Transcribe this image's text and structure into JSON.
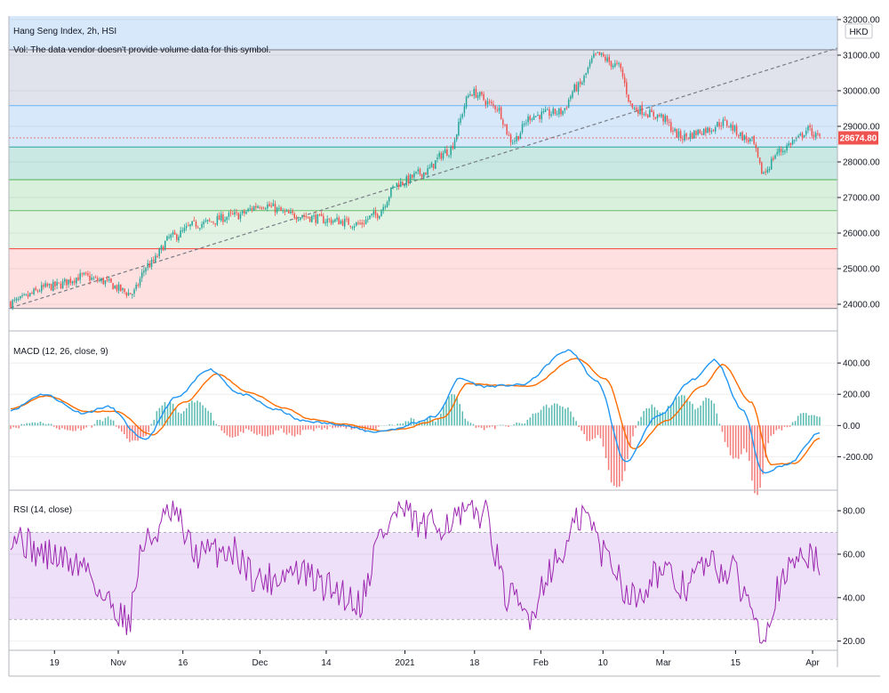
{
  "header": {
    "title": "Hang Seng Index, 2h, HSI",
    "volume_note": "Vol: The data vendor doesn't provide volume data for this symbol.",
    "currency": "HKD"
  },
  "price_badge": "28674.80",
  "macd_label": "MACD (12, 26, close, 9)",
  "rsi_label": "RSI (14, close)",
  "colors": {
    "up": "#26a69a",
    "down": "#ef5350",
    "macd": "#2196f3",
    "signal": "#ff6d00",
    "rsi": "#9c27b0",
    "rsi_band": "#e9d6f7",
    "trendline": "#787b86"
  },
  "chart_data": [
    {
      "type": "candlestick",
      "title": "Hang Seng Index, 2h, HSI",
      "ylim": [
        23800,
        32100
      ],
      "y_ticks": [
        "32000.00",
        "31000.00",
        "30000.00",
        "29000.00",
        "28000.00",
        "27000.00",
        "26000.00",
        "25000.00",
        "24000.00"
      ],
      "x_ticks": [
        "19",
        "Nov",
        "16",
        "Dec",
        "14",
        "2021",
        "18",
        "Feb",
        "10",
        "Mar",
        "15",
        "Apr"
      ],
      "last_price": 28674.8,
      "fib_levels": [
        31150,
        29580,
        28420,
        27500,
        26630,
        25560,
        23880
      ],
      "fib_band_colors": [
        "#e0e3eb",
        "#d7e8fb",
        "#c9e8e3",
        "#d9f0dc",
        "#e3f3e3",
        "#fde0df"
      ],
      "fib_line_colors": [
        "#787b86",
        "#64b5f6",
        "#26a69a",
        "#4caf50",
        "#66bb6a",
        "#f44336",
        "#787b86"
      ],
      "trendline": {
        "from": [
          0,
          23900
        ],
        "to": [
          1,
          31200
        ]
      },
      "anchors": [
        [
          0,
          24050
        ],
        [
          0.05,
          24500
        ],
        [
          0.09,
          24780
        ],
        [
          0.11,
          24660
        ],
        [
          0.15,
          24300
        ],
        [
          0.17,
          25100
        ],
        [
          0.2,
          25900
        ],
        [
          0.23,
          26250
        ],
        [
          0.28,
          26500
        ],
        [
          0.31,
          26800
        ],
        [
          0.35,
          26500
        ],
        [
          0.4,
          26350
        ],
        [
          0.43,
          26250
        ],
        [
          0.45,
          26500
        ],
        [
          0.48,
          27400
        ],
        [
          0.51,
          27700
        ],
        [
          0.54,
          28300
        ],
        [
          0.57,
          29950
        ],
        [
          0.6,
          29550
        ],
        [
          0.62,
          28600
        ],
        [
          0.645,
          29300
        ],
        [
          0.68,
          29400
        ],
        [
          0.7,
          30100
        ],
        [
          0.725,
          31000
        ],
        [
          0.75,
          30700
        ],
        [
          0.77,
          29500
        ],
        [
          0.8,
          29300
        ],
        [
          0.83,
          28700
        ],
        [
          0.86,
          28900
        ],
        [
          0.88,
          29100
        ],
        [
          0.915,
          28600
        ],
        [
          0.93,
          27700
        ],
        [
          0.95,
          28300
        ],
        [
          0.97,
          28600
        ],
        [
          0.985,
          28900
        ],
        [
          1,
          28675
        ]
      ]
    },
    {
      "type": "line",
      "title": "MACD (12, 26, close, 9)",
      "series": [
        {
          "name": "MACD",
          "anchors": [
            [
              0,
              100
            ],
            [
              0.04,
              200
            ],
            [
              0.09,
              80
            ],
            [
              0.12,
              120
            ],
            [
              0.165,
              -90
            ],
            [
              0.205,
              180
            ],
            [
              0.245,
              360
            ],
            [
              0.285,
              200
            ],
            [
              0.33,
              100
            ],
            [
              0.36,
              30
            ],
            [
              0.4,
              10
            ],
            [
              0.45,
              -40
            ],
            [
              0.48,
              -20
            ],
            [
              0.5,
              20
            ],
            [
              0.525,
              60
            ],
            [
              0.555,
              300
            ],
            [
              0.585,
              250
            ],
            [
              0.63,
              260
            ],
            [
              0.69,
              480
            ],
            [
              0.725,
              280
            ],
            [
              0.76,
              -230
            ],
            [
              0.8,
              60
            ],
            [
              0.845,
              300
            ],
            [
              0.87,
              420
            ],
            [
              0.905,
              100
            ],
            [
              0.93,
              -300
            ],
            [
              0.96,
              -250
            ],
            [
              1,
              -50
            ]
          ]
        },
        {
          "name": "Signal",
          "anchors": [
            [
              0,
              110
            ],
            [
              0.045,
              190
            ],
            [
              0.095,
              90
            ],
            [
              0.13,
              90
            ],
            [
              0.175,
              -60
            ],
            [
              0.215,
              150
            ],
            [
              0.255,
              330
            ],
            [
              0.295,
              210
            ],
            [
              0.34,
              110
            ],
            [
              0.37,
              40
            ],
            [
              0.41,
              10
            ],
            [
              0.46,
              -35
            ],
            [
              0.49,
              -20
            ],
            [
              0.51,
              15
            ],
            [
              0.535,
              50
            ],
            [
              0.565,
              270
            ],
            [
              0.595,
              260
            ],
            [
              0.64,
              250
            ],
            [
              0.7,
              430
            ],
            [
              0.735,
              300
            ],
            [
              0.77,
              -150
            ],
            [
              0.81,
              30
            ],
            [
              0.855,
              250
            ],
            [
              0.88,
              390
            ],
            [
              0.915,
              150
            ],
            [
              0.94,
              -250
            ],
            [
              0.97,
              -240
            ],
            [
              1,
              -80
            ]
          ]
        }
      ],
      "ylim": [
        -380,
        560
      ],
      "y_ticks": [
        "400.00",
        "200.00",
        "0.00",
        "-200.00"
      ],
      "x_ticks": [
        "19",
        "Nov",
        "16",
        "Dec",
        "14",
        "2021",
        "18",
        "Feb",
        "10",
        "Mar",
        "15",
        "Apr"
      ]
    },
    {
      "type": "line",
      "title": "RSI (14, close)",
      "series": [
        {
          "name": "RSI",
          "anchors": [
            [
              0,
              70
            ],
            [
              0.04,
              60
            ],
            [
              0.09,
              55
            ],
            [
              0.12,
              38
            ],
            [
              0.145,
              30
            ],
            [
              0.165,
              65
            ],
            [
              0.2,
              78
            ],
            [
              0.23,
              60
            ],
            [
              0.27,
              62
            ],
            [
              0.31,
              48
            ],
            [
              0.35,
              52
            ],
            [
              0.4,
              44
            ],
            [
              0.43,
              38
            ],
            [
              0.46,
              70
            ],
            [
              0.48,
              80
            ],
            [
              0.51,
              72
            ],
            [
              0.55,
              76
            ],
            [
              0.585,
              80
            ],
            [
              0.615,
              40
            ],
            [
              0.64,
              32
            ],
            [
              0.67,
              55
            ],
            [
              0.71,
              78
            ],
            [
              0.735,
              60
            ],
            [
              0.77,
              40
            ],
            [
              0.8,
              52
            ],
            [
              0.83,
              45
            ],
            [
              0.86,
              55
            ],
            [
              0.89,
              52
            ],
            [
              0.915,
              38
            ],
            [
              0.93,
              24
            ],
            [
              0.95,
              45
            ],
            [
              0.98,
              62
            ],
            [
              1,
              55
            ]
          ]
        }
      ],
      "ylim": [
        17,
        87
      ],
      "y_ticks": [
        "80.00",
        "60.00",
        "40.00",
        "20.00"
      ],
      "bands": {
        "upper": 70,
        "lower": 30
      },
      "x_ticks": [
        "19",
        "Nov",
        "16",
        "Dec",
        "14",
        "2021",
        "18",
        "Feb",
        "10",
        "Mar",
        "15",
        "Apr"
      ]
    }
  ]
}
